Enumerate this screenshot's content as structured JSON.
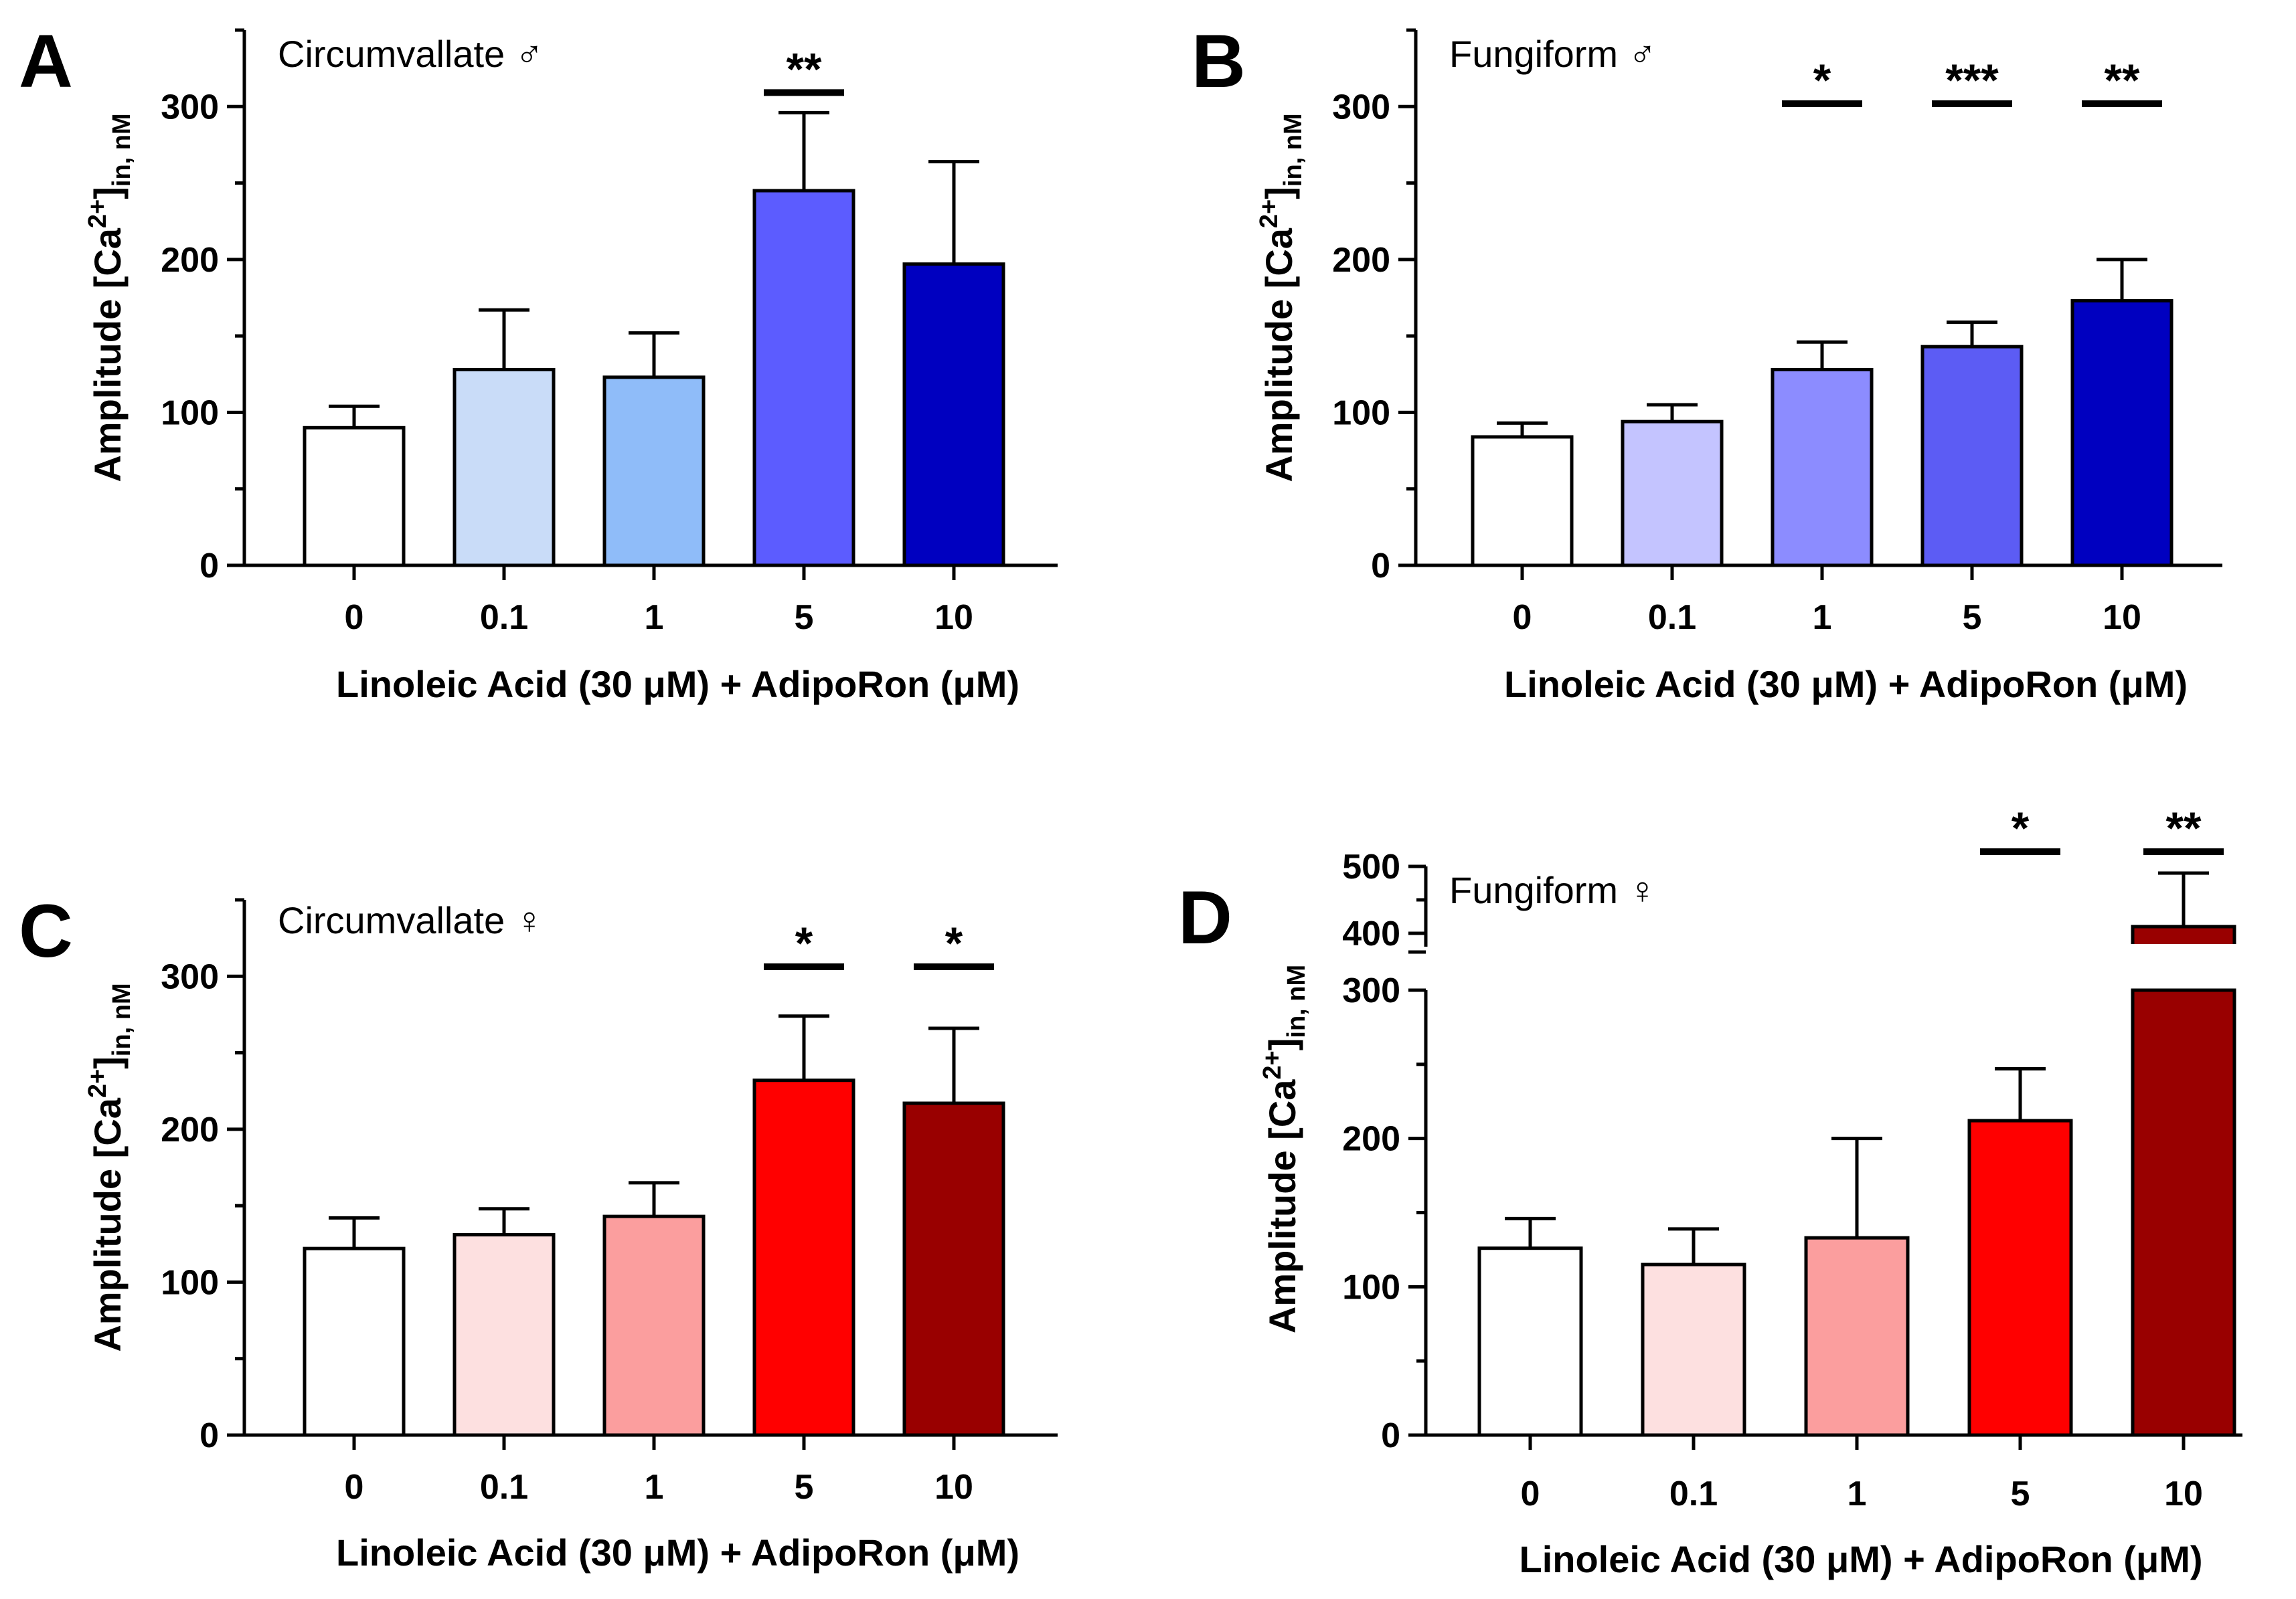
{
  "figure": {
    "x_axis_label": "Linoleic Acid (30 μM) + AdipoRon (μM)",
    "y_axis_label_main": "Amplitude [Ca",
    "y_axis_label_sup": "2+",
    "y_axis_label_end": "]",
    "y_axis_label_sub": "in, nM"
  },
  "chart_data": [
    {
      "type": "bar",
      "panel": "A",
      "title": "Circumvallate ♂",
      "categories": [
        "0",
        "0.1",
        "1",
        "5",
        "10"
      ],
      "values": [
        90,
        128,
        123,
        245,
        197
      ],
      "errors": [
        14,
        39,
        29,
        51,
        67
      ],
      "colors": [
        "#ffffff",
        "#c9dcf8",
        "#8fbcf9",
        "#5c5cff",
        "#0000c0"
      ],
      "significance": [
        "",
        "",
        "",
        "**",
        ""
      ],
      "xlabel": "Linoleic Acid (30 μM) + AdipoRon (μM)",
      "ylabel": "Amplitude [Ca2+]in, nM",
      "ylim": [
        0,
        350
      ],
      "yticks": [
        "0",
        "100",
        "200",
        "300"
      ]
    },
    {
      "type": "bar",
      "panel": "B",
      "title": "Fungiform ♂",
      "categories": [
        "0",
        "0.1",
        "1",
        "5",
        "10"
      ],
      "values": [
        84,
        94,
        128,
        143,
        173
      ],
      "errors": [
        9,
        11,
        18,
        16,
        27
      ],
      "colors": [
        "#ffffff",
        "#c4c4ff",
        "#8c8cff",
        "#5c5cf4",
        "#0000c0"
      ],
      "significance": [
        "",
        "",
        "*",
        "***",
        "**"
      ],
      "xlabel": "Linoleic Acid (30 μM) + AdipoRon (μM)",
      "ylabel": "Amplitude [Ca2+]in, nM",
      "ylim": [
        0,
        350
      ],
      "yticks": [
        "0",
        "100",
        "200",
        "300"
      ]
    },
    {
      "type": "bar",
      "panel": "C",
      "title": "Circumvallate ♀",
      "categories": [
        "0",
        "0.1",
        "1",
        "5",
        "10"
      ],
      "values": [
        122,
        131,
        143,
        232,
        217
      ],
      "errors": [
        20,
        17,
        22,
        42,
        49
      ],
      "colors": [
        "#ffffff",
        "#fde0e0",
        "#fb9e9e",
        "#ff0000",
        "#990000"
      ],
      "significance": [
        "",
        "",
        "",
        "*",
        "*"
      ],
      "xlabel": "Linoleic Acid (30 μM) + AdipoRon (μM)",
      "ylabel": "Amplitude [Ca2+]in, nM",
      "ylim": [
        0,
        350
      ],
      "yticks": [
        "0",
        "100",
        "200",
        "300"
      ]
    },
    {
      "type": "bar",
      "panel": "D",
      "title": "Fungiform ♀",
      "categories": [
        "0",
        "0.1",
        "1",
        "5",
        "10"
      ],
      "values": [
        126,
        115,
        133,
        212,
        410
      ],
      "errors": [
        20,
        24,
        67,
        35,
        80
      ],
      "colors": [
        "#ffffff",
        "#fde0e0",
        "#fb9e9e",
        "#ff0000",
        "#990000"
      ],
      "significance": [
        "",
        "",
        "",
        "*",
        "**"
      ],
      "xlabel": "Linoleic Acid (30 μM) + AdipoRon (μM)",
      "ylabel": "Amplitude [Ca2+]in, nM",
      "ylim": [
        0,
        500
      ],
      "axis_break": [
        300,
        380
      ],
      "yticks": [
        "0",
        "100",
        "200",
        "300",
        "400",
        "500"
      ]
    }
  ]
}
